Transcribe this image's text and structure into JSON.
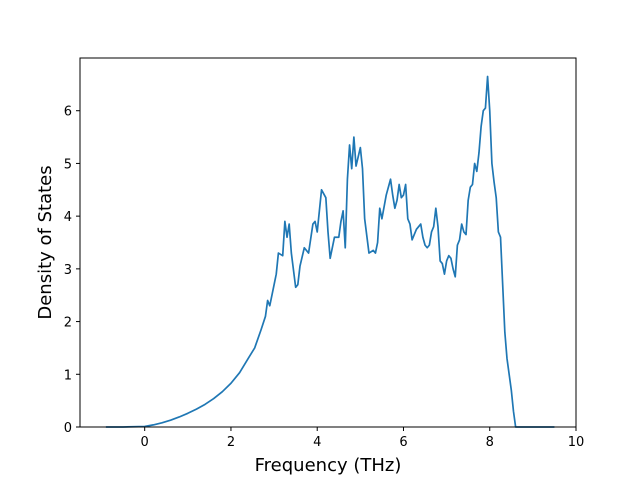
{
  "chart_data": {
    "type": "line",
    "title": "",
    "xlabel": "Frequency (THz)",
    "ylabel": "Density of States",
    "xlim": [
      -1.5,
      10
    ],
    "ylim": [
      0,
      7
    ],
    "grid": false,
    "legend": "none",
    "xticks": [
      0,
      2,
      4,
      6,
      8,
      10
    ],
    "yticks": [
      0,
      1,
      2,
      3,
      4,
      5,
      6
    ],
    "color": "#1f77b4",
    "series": [
      {
        "x": [
          -0.9,
          -0.5,
          0.0,
          0.2,
          0.4,
          0.6,
          0.8,
          1.0,
          1.2,
          1.4,
          1.6,
          1.8,
          2.0,
          2.2,
          2.4,
          2.55,
          2.7,
          2.8,
          2.85,
          2.9,
          3.0,
          3.05,
          3.1,
          3.2,
          3.25,
          3.3,
          3.35,
          3.4,
          3.5,
          3.55,
          3.6,
          3.7,
          3.8,
          3.9,
          3.95,
          4.0,
          4.1,
          4.2,
          4.25,
          4.3,
          4.4,
          4.5,
          4.55,
          4.6,
          4.65,
          4.7,
          4.75,
          4.8,
          4.85,
          4.9,
          5.0,
          5.05,
          5.1,
          5.2,
          5.3,
          5.35,
          5.4,
          5.45,
          5.5,
          5.6,
          5.7,
          5.75,
          5.8,
          5.85,
          5.9,
          5.95,
          6.0,
          6.05,
          6.1,
          6.15,
          6.2,
          6.3,
          6.4,
          6.45,
          6.5,
          6.55,
          6.6,
          6.65,
          6.7,
          6.75,
          6.8,
          6.85,
          6.9,
          6.95,
          7.0,
          7.05,
          7.1,
          7.15,
          7.2,
          7.25,
          7.3,
          7.35,
          7.4,
          7.45,
          7.5,
          7.55,
          7.6,
          7.65,
          7.7,
          7.75,
          7.8,
          7.85,
          7.9,
          7.95,
          8.0,
          8.05,
          8.1,
          8.15,
          8.2,
          8.25,
          8.3,
          8.35,
          8.4,
          8.5,
          8.55,
          8.6,
          8.65,
          8.7,
          9.0,
          9.5
        ],
        "y": [
          0.0,
          0.0,
          0.01,
          0.04,
          0.08,
          0.13,
          0.19,
          0.26,
          0.34,
          0.43,
          0.54,
          0.67,
          0.83,
          1.03,
          1.3,
          1.5,
          1.85,
          2.1,
          2.4,
          2.3,
          2.7,
          2.9,
          3.3,
          3.25,
          3.9,
          3.6,
          3.85,
          3.3,
          2.65,
          2.7,
          3.05,
          3.4,
          3.3,
          3.85,
          3.9,
          3.7,
          4.5,
          4.35,
          3.7,
          3.2,
          3.6,
          3.6,
          3.9,
          4.1,
          3.4,
          4.7,
          5.35,
          4.9,
          5.5,
          4.95,
          5.3,
          4.9,
          3.95,
          3.3,
          3.35,
          3.3,
          3.5,
          4.15,
          3.95,
          4.4,
          4.7,
          4.4,
          4.15,
          4.3,
          4.6,
          4.35,
          4.4,
          4.6,
          3.95,
          3.85,
          3.55,
          3.75,
          3.85,
          3.6,
          3.45,
          3.4,
          3.45,
          3.7,
          3.8,
          4.15,
          3.8,
          3.15,
          3.1,
          2.9,
          3.15,
          3.25,
          3.2,
          3.0,
          2.85,
          3.45,
          3.55,
          3.85,
          3.7,
          3.65,
          4.3,
          4.55,
          4.6,
          5.0,
          4.85,
          5.2,
          5.7,
          6.0,
          6.05,
          6.65,
          6.0,
          5.0,
          4.65,
          4.35,
          3.7,
          3.6,
          2.7,
          1.8,
          1.3,
          0.7,
          0.3,
          0.0,
          0.0,
          0.0,
          0.0,
          0.0
        ]
      }
    ]
  }
}
